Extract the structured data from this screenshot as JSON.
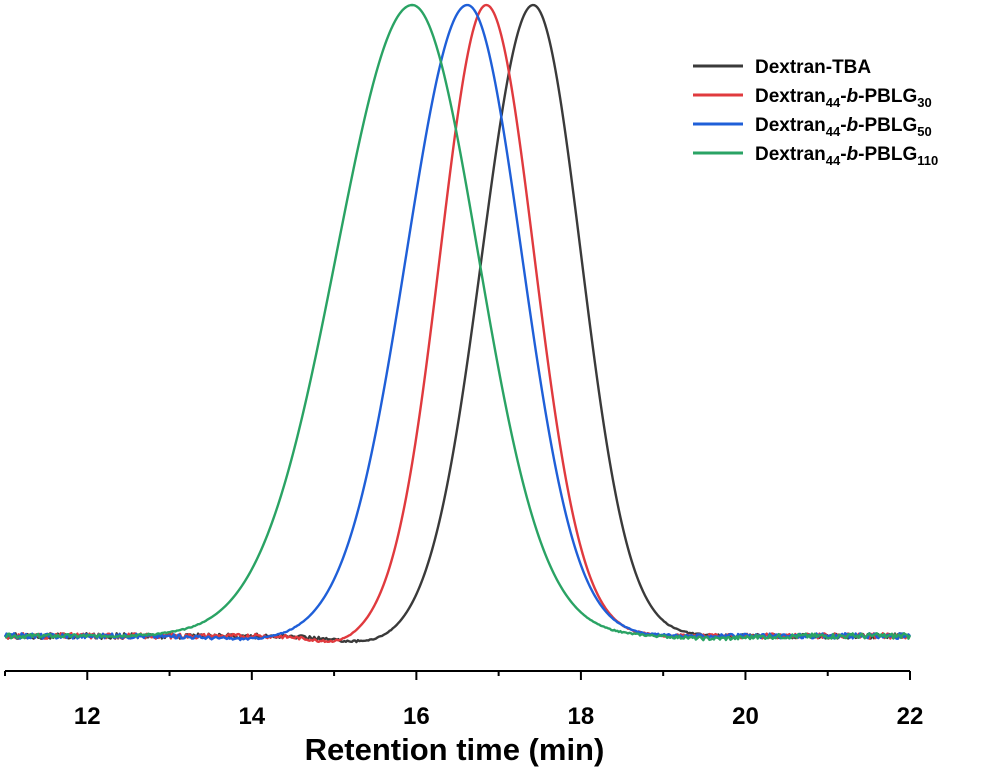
{
  "chart_data": {
    "type": "line",
    "title": "",
    "xlabel": "Retention time (min)",
    "ylabel": "",
    "xlim": [
      11,
      22
    ],
    "ylim": [
      0,
      1
    ],
    "x_ticks": [
      12,
      14,
      16,
      18,
      20,
      22
    ],
    "grid": false,
    "legend_position": "top-right",
    "series": [
      {
        "name": "Dextran-TBA",
        "legend": {
          "base": "Dextran-TBA",
          "sub": "",
          "italic": "",
          "tail": "",
          "sub2": ""
        },
        "color": "#3a3a3a",
        "peak": {
          "x": 17.42,
          "height": 1.0,
          "width_left": 0.62,
          "width_right": 0.58
        },
        "dip": {
          "x": 15.5,
          "depth": 0.012,
          "width": 0.45
        },
        "baseline": 0.0
      },
      {
        "name": "Dextran44-b-PBLG30",
        "legend": {
          "base": "Dextran",
          "sub": "44",
          "italic": "b",
          "tail": "-PBLG",
          "sub2": "30"
        },
        "color": "#e03a3e",
        "peak": {
          "x": 16.85,
          "height": 1.0,
          "width_left": 0.56,
          "width_right": 0.58
        },
        "dip": {
          "x": 15.05,
          "depth": 0.012,
          "width": 0.3
        },
        "baseline": 0.0
      },
      {
        "name": "Dextran44-b-PBLG50",
        "legend": {
          "base": "Dextran",
          "sub": "44",
          "italic": "b",
          "tail": "-PBLG",
          "sub2": "50"
        },
        "color": "#1f5fd8",
        "peak": {
          "x": 16.62,
          "height": 1.0,
          "width_left": 0.74,
          "width_right": 0.66
        },
        "dip": {
          "x": 14.1,
          "depth": 0.006,
          "width": 0.5
        },
        "baseline": 0.0
      },
      {
        "name": "Dextran44-b-PBLG110",
        "legend": {
          "base": "Dextran",
          "sub": "44",
          "italic": "b",
          "tail": "-PBLG",
          "sub2": "110"
        },
        "color": "#2aa364",
        "peak": {
          "x": 15.95,
          "height": 1.0,
          "width_left": 0.92,
          "width_right": 0.8
        },
        "dip": {
          "x": 19.6,
          "depth": 0.004,
          "width": 0.4
        },
        "baseline": 0.0
      }
    ]
  }
}
